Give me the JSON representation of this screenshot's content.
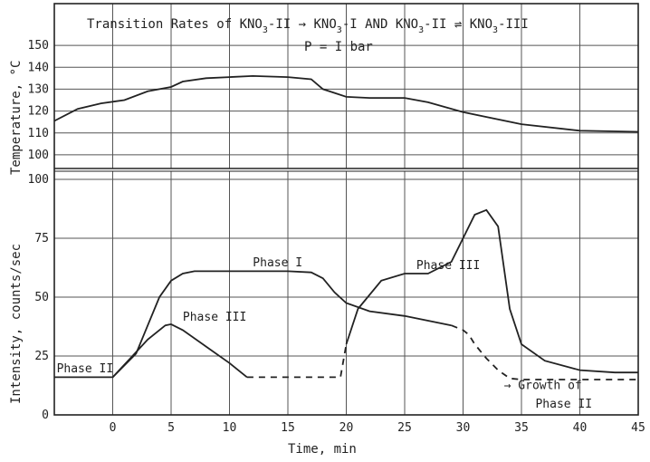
{
  "chart_data": [
    {
      "type": "line",
      "title": "Transition Rates of KNO3-II → KNO3-I AND KNO3-II ⇌ KNO3-III",
      "subtitle": "P = 1 bar",
      "ylabel": "Temperature, °C",
      "xlim": [
        -5,
        45
      ],
      "ylim": [
        95,
        155
      ],
      "yticks": [
        100,
        110,
        120,
        130,
        140,
        150
      ],
      "grid": true,
      "series": [
        {
          "x": [
            -5,
            -3,
            -1,
            1,
            3,
            5,
            6,
            8,
            10,
            12,
            15,
            17,
            18,
            20,
            22,
            25,
            27,
            30,
            35,
            40,
            45
          ],
          "y": [
            115.5,
            121,
            123.5,
            125,
            129,
            131,
            133.5,
            135,
            135.5,
            136,
            135.5,
            134.5,
            130,
            126.5,
            126,
            126,
            124,
            119.5,
            114,
            111,
            110.5
          ]
        }
      ]
    },
    {
      "type": "line",
      "xlabel": "Time, min",
      "ylabel": "Intensity, counts/sec",
      "xlim": [
        -5,
        45
      ],
      "ylim": [
        0,
        100
      ],
      "xticks": [
        0,
        5,
        10,
        15,
        20,
        25,
        30,
        35,
        40,
        45
      ],
      "yticks": [
        0,
        25,
        50,
        75,
        100
      ],
      "grid": true,
      "series": [
        {
          "name": "Phase II",
          "x": [
            -5,
            0
          ],
          "y": [
            16,
            16
          ],
          "style": "solid"
        },
        {
          "name": "Phase I",
          "x": [
            0,
            2,
            3,
            4,
            5,
            6,
            7,
            10,
            15,
            17,
            18,
            19,
            20,
            22,
            25,
            27,
            29,
            30,
            30.5,
            31,
            32,
            33,
            34,
            35,
            37,
            40,
            43,
            45
          ],
          "y": [
            16,
            26,
            38,
            50,
            57,
            60,
            61,
            61,
            61,
            60.5,
            58,
            52,
            47.5,
            44,
            42,
            40,
            38,
            36,
            34,
            30,
            24,
            19,
            15.5,
            15,
            15,
            15,
            15,
            15
          ],
          "style": "dashed-after-29",
          "dashed_from": 29
        },
        {
          "name": "Phase III",
          "x": [
            0,
            1.5,
            3,
            4.5,
            5,
            6,
            8,
            10,
            11.5,
            12,
            15,
            19.5,
            20,
            21,
            23,
            25,
            27,
            29,
            31,
            32,
            33,
            34,
            35,
            37,
            40,
            43,
            45
          ],
          "y": [
            16,
            24,
            32,
            38,
            38.5,
            36,
            29,
            22,
            16,
            16,
            16,
            16,
            30,
            45,
            57,
            60,
            60,
            65,
            85,
            87,
            80,
            45,
            30,
            23,
            19,
            18,
            18
          ],
          "style": "dashed-between-12-20",
          "dashed_between": [
            11.5,
            20
          ]
        }
      ],
      "annotations": [
        {
          "text": "Phase II",
          "x": -4.8,
          "y": 18
        },
        {
          "text": "Phase I",
          "x": 12,
          "y": 63
        },
        {
          "text": "Phase III",
          "x": 6,
          "y": 40
        },
        {
          "text": "Phase III",
          "x": 26,
          "y": 62
        },
        {
          "text": "→ Growth of",
          "x": 33.5,
          "y": 11
        },
        {
          "text": "Phase II",
          "x": 36.2,
          "y": 3
        }
      ]
    }
  ],
  "annotations": {
    "title_parts": {
      "prefix": "Transition Rates of ",
      "kno3a": "KNO",
      "sub3a": "3",
      "suffixa": "-II → ",
      "kno3b": "KNO",
      "sub3b": "3",
      "suffixb": "-I  AND  ",
      "kno3c": "KNO",
      "sub3c": "3",
      "suffixc": "-II ⇌ ",
      "kno3d": "KNO",
      "sub3d": "3",
      "suffixd": "-III"
    },
    "pressure_text": "P = I bar"
  }
}
